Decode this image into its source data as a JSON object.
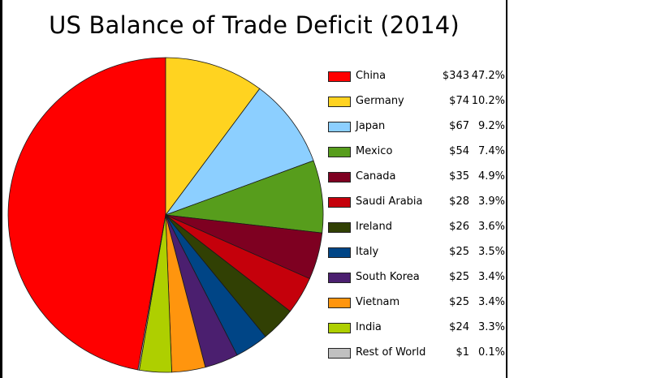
{
  "chart_data": {
    "type": "pie",
    "title": "US Balance of Trade Deficit (2014)",
    "legend_position": "right",
    "slices": [
      {
        "label": "China",
        "value": 343,
        "value_label": "$343",
        "percent_label": "47.2%",
        "color": "#ff0000"
      },
      {
        "label": "Germany",
        "value": 74,
        "value_label": "$74",
        "percent_label": "10.2%",
        "color": "#ffd320"
      },
      {
        "label": "Japan",
        "value": 67,
        "value_label": "$67",
        "percent_label": "9.2%",
        "color": "#8ccfff"
      },
      {
        "label": "Mexico",
        "value": 54,
        "value_label": "$54",
        "percent_label": "7.4%",
        "color": "#579d1c"
      },
      {
        "label": "Canada",
        "value": 35,
        "value_label": "$35",
        "percent_label": "4.9%",
        "color": "#7e0021"
      },
      {
        "label": "Saudi Arabia",
        "value": 28,
        "value_label": "$28",
        "percent_label": "3.9%",
        "color": "#c5000b"
      },
      {
        "label": "Ireland",
        "value": 26,
        "value_label": "$26",
        "percent_label": "3.6%",
        "color": "#314004"
      },
      {
        "label": "Italy",
        "value": 25,
        "value_label": "$25",
        "percent_label": "3.5%",
        "color": "#004586"
      },
      {
        "label": "South Korea",
        "value": 25,
        "value_label": "$25",
        "percent_label": "3.4%",
        "color": "#4b1f6f"
      },
      {
        "label": "Vietnam",
        "value": 25,
        "value_label": "$25",
        "percent_label": "3.4%",
        "color": "#ff950e"
      },
      {
        "label": "India",
        "value": 24,
        "value_label": "$24",
        "percent_label": "3.3%",
        "color": "#aecf00"
      },
      {
        "label": "Rest of World",
        "value": 1,
        "value_label": "$1",
        "percent_label": "0.1%",
        "color": "#c0c0c0"
      }
    ]
  }
}
